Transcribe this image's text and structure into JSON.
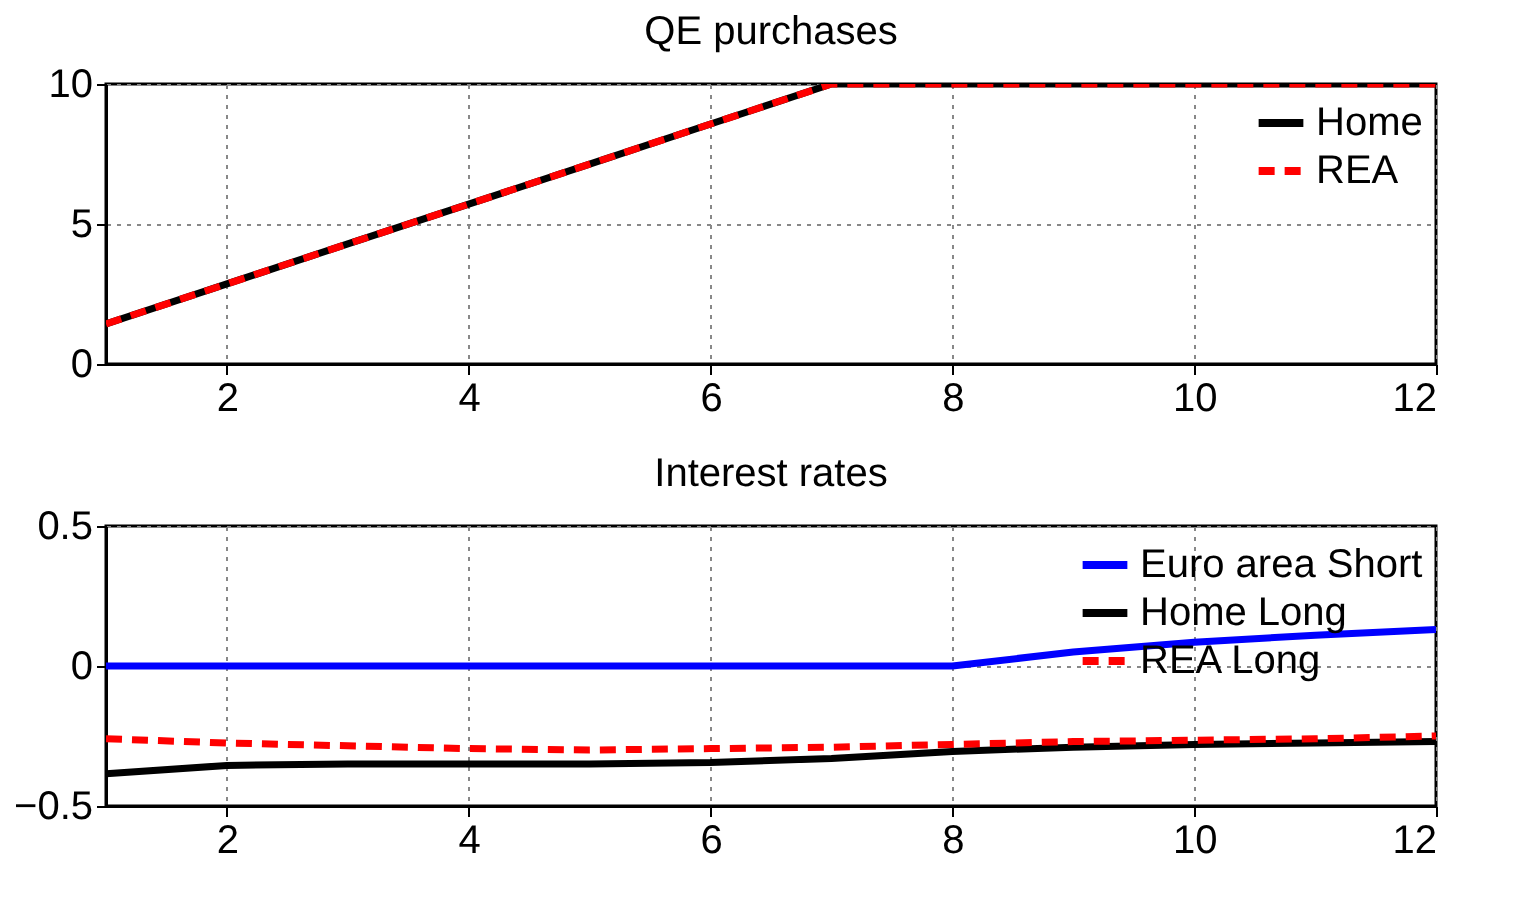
{
  "chart_data": [
    {
      "type": "line",
      "title": "QE purchases",
      "x": [
        1,
        2,
        3,
        4,
        5,
        6,
        7,
        8,
        9,
        10,
        11,
        12
      ],
      "xlim": [
        1,
        12
      ],
      "xticks": [
        2,
        4,
        6,
        8,
        10,
        12
      ],
      "ylim": [
        0,
        10
      ],
      "yticks": [
        0,
        5,
        10
      ],
      "grid": true,
      "legend": "top right",
      "series": [
        {
          "name": "Home",
          "color": "#000000",
          "line_style": "solid",
          "values": [
            1.43,
            2.86,
            4.29,
            5.71,
            7.14,
            8.57,
            10,
            10,
            10,
            10,
            10,
            10
          ]
        },
        {
          "name": "REA",
          "color": "#ff0000",
          "line_style": "dashed",
          "values": [
            1.43,
            2.86,
            4.29,
            5.71,
            7.14,
            8.57,
            10,
            10,
            10,
            10,
            10,
            10
          ]
        }
      ]
    },
    {
      "type": "line",
      "title": "Interest rates",
      "x": [
        1,
        2,
        3,
        4,
        5,
        6,
        7,
        8,
        9,
        10,
        11,
        12
      ],
      "xlim": [
        1,
        12
      ],
      "xticks": [
        2,
        4,
        6,
        8,
        10,
        12
      ],
      "ylim": [
        -0.5,
        0.5
      ],
      "yticks": [
        -0.5,
        0,
        0.5
      ],
      "grid": true,
      "legend": "top right",
      "series": [
        {
          "name": "Euro area Short",
          "color": "#0000ff",
          "line_style": "solid",
          "values": [
            0,
            0,
            0,
            0,
            0,
            0,
            0,
            0,
            0.05,
            0.085,
            0.11,
            0.13
          ]
        },
        {
          "name": "Home Long",
          "color": "#000000",
          "line_style": "solid",
          "values": [
            -0.385,
            -0.355,
            -0.35,
            -0.35,
            -0.35,
            -0.345,
            -0.33,
            -0.305,
            -0.29,
            -0.28,
            -0.275,
            -0.27
          ]
        },
        {
          "name": "REA Long",
          "color": "#ff0000",
          "line_style": "dashed",
          "values": [
            -0.26,
            -0.275,
            -0.285,
            -0.295,
            -0.3,
            -0.295,
            -0.29,
            -0.28,
            -0.27,
            -0.265,
            -0.26,
            -0.25
          ]
        }
      ]
    }
  ]
}
